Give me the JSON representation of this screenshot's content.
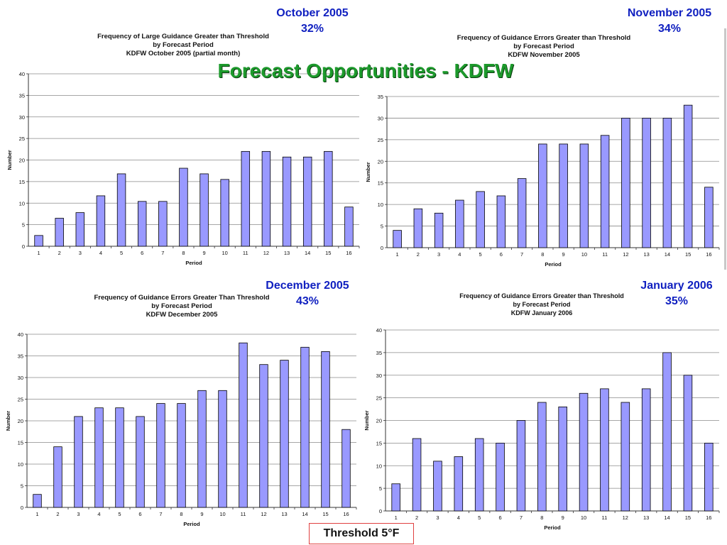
{
  "page": {
    "title": "Forecast Opportunities - KDFW",
    "threshold_label": "Threshold 5°F"
  },
  "panels": [
    {
      "month": "October 2005",
      "percent": "32%",
      "title_lines": [
        "Frequency of Large Guidance Greater than Threshold",
        "by Forecast Period",
        "KDFW October 2005 (partial month)"
      ]
    },
    {
      "month": "November 2005",
      "percent": "34%",
      "title_lines": [
        "Frequency of Guidance Errors Greater than Threshold",
        "by Forecast Period",
        "KDFW November 2005"
      ]
    },
    {
      "month": "December 2005",
      "percent": "43%",
      "title_lines": [
        "Frequency of Guidance Errors Greater Than Threshold",
        "by Forecast Period",
        "KDFW December 2005"
      ]
    },
    {
      "month": "January 2006",
      "percent": "35%",
      "title_lines": [
        "Frequency of Guidance Errors Greater than Threshold",
        "by Forecast Period",
        "KDFW January 2006"
      ]
    }
  ],
  "chart_data": [
    {
      "type": "bar",
      "title": "Frequency of Large Guidance Greater than Threshold by Forecast Period KDFW October 2005 (partial month)",
      "xlabel": "Period",
      "ylabel": "Number",
      "ylim": [
        0,
        40
      ],
      "yticks": [
        0,
        5,
        10,
        15,
        20,
        25,
        30,
        35,
        40
      ],
      "categories": [
        "1",
        "2",
        "3",
        "4",
        "5",
        "6",
        "7",
        "8",
        "9",
        "10",
        "11",
        "12",
        "13",
        "14",
        "15",
        "16"
      ],
      "values": [
        2.5,
        6.5,
        7.8,
        11.7,
        16.8,
        10.4,
        10.4,
        18.1,
        16.8,
        15.5,
        22,
        22,
        20.7,
        20.7,
        22,
        9.1
      ],
      "bar_color": "#9999ff",
      "grid": true
    },
    {
      "type": "bar",
      "title": "Frequency of Guidance Errors Greater than Threshold by Forecast Period KDFW November 2005",
      "xlabel": "Period",
      "ylabel": "Number",
      "ylim": [
        0,
        35
      ],
      "yticks": [
        0,
        5,
        10,
        15,
        20,
        25,
        30,
        35
      ],
      "categories": [
        "1",
        "2",
        "3",
        "4",
        "5",
        "6",
        "7",
        "8",
        "9",
        "10",
        "11",
        "12",
        "13",
        "14",
        "15",
        "16"
      ],
      "values": [
        4,
        9,
        8,
        11,
        13,
        12,
        16,
        24,
        24,
        24,
        26,
        30,
        30,
        30,
        33,
        14
      ],
      "bar_color": "#9999ff",
      "grid": true
    },
    {
      "type": "bar",
      "title": "Frequency of Guidance Errors Greater Than Threshold by Forecast Period KDFW December 2005",
      "xlabel": "Period",
      "ylabel": "Number",
      "ylim": [
        0,
        40
      ],
      "yticks": [
        0,
        5,
        10,
        15,
        20,
        25,
        30,
        35,
        40
      ],
      "categories": [
        "1",
        "2",
        "3",
        "4",
        "5",
        "6",
        "7",
        "8",
        "9",
        "10",
        "11",
        "12",
        "13",
        "14",
        "15",
        "16"
      ],
      "values": [
        3,
        14,
        21,
        23,
        23,
        21,
        24,
        24,
        27,
        27,
        38,
        33,
        34,
        37,
        36,
        18
      ],
      "bar_color": "#9999ff",
      "grid": true
    },
    {
      "type": "bar",
      "title": "Frequency of Guidance Errors Greater than Threshold by Forecast Period KDFW January 2006",
      "xlabel": "Period",
      "ylabel": "Number",
      "ylim": [
        0,
        40
      ],
      "yticks": [
        0,
        5,
        10,
        15,
        20,
        25,
        30,
        35,
        40
      ],
      "categories": [
        "1",
        "2",
        "3",
        "4",
        "5",
        "6",
        "7",
        "8",
        "9",
        "10",
        "11",
        "12",
        "13",
        "14",
        "15",
        "16"
      ],
      "values": [
        6,
        16,
        11,
        12,
        16,
        15,
        20,
        24,
        23,
        26,
        27,
        24,
        27,
        35,
        30,
        15
      ],
      "bar_color": "#9999ff",
      "grid": true
    }
  ]
}
